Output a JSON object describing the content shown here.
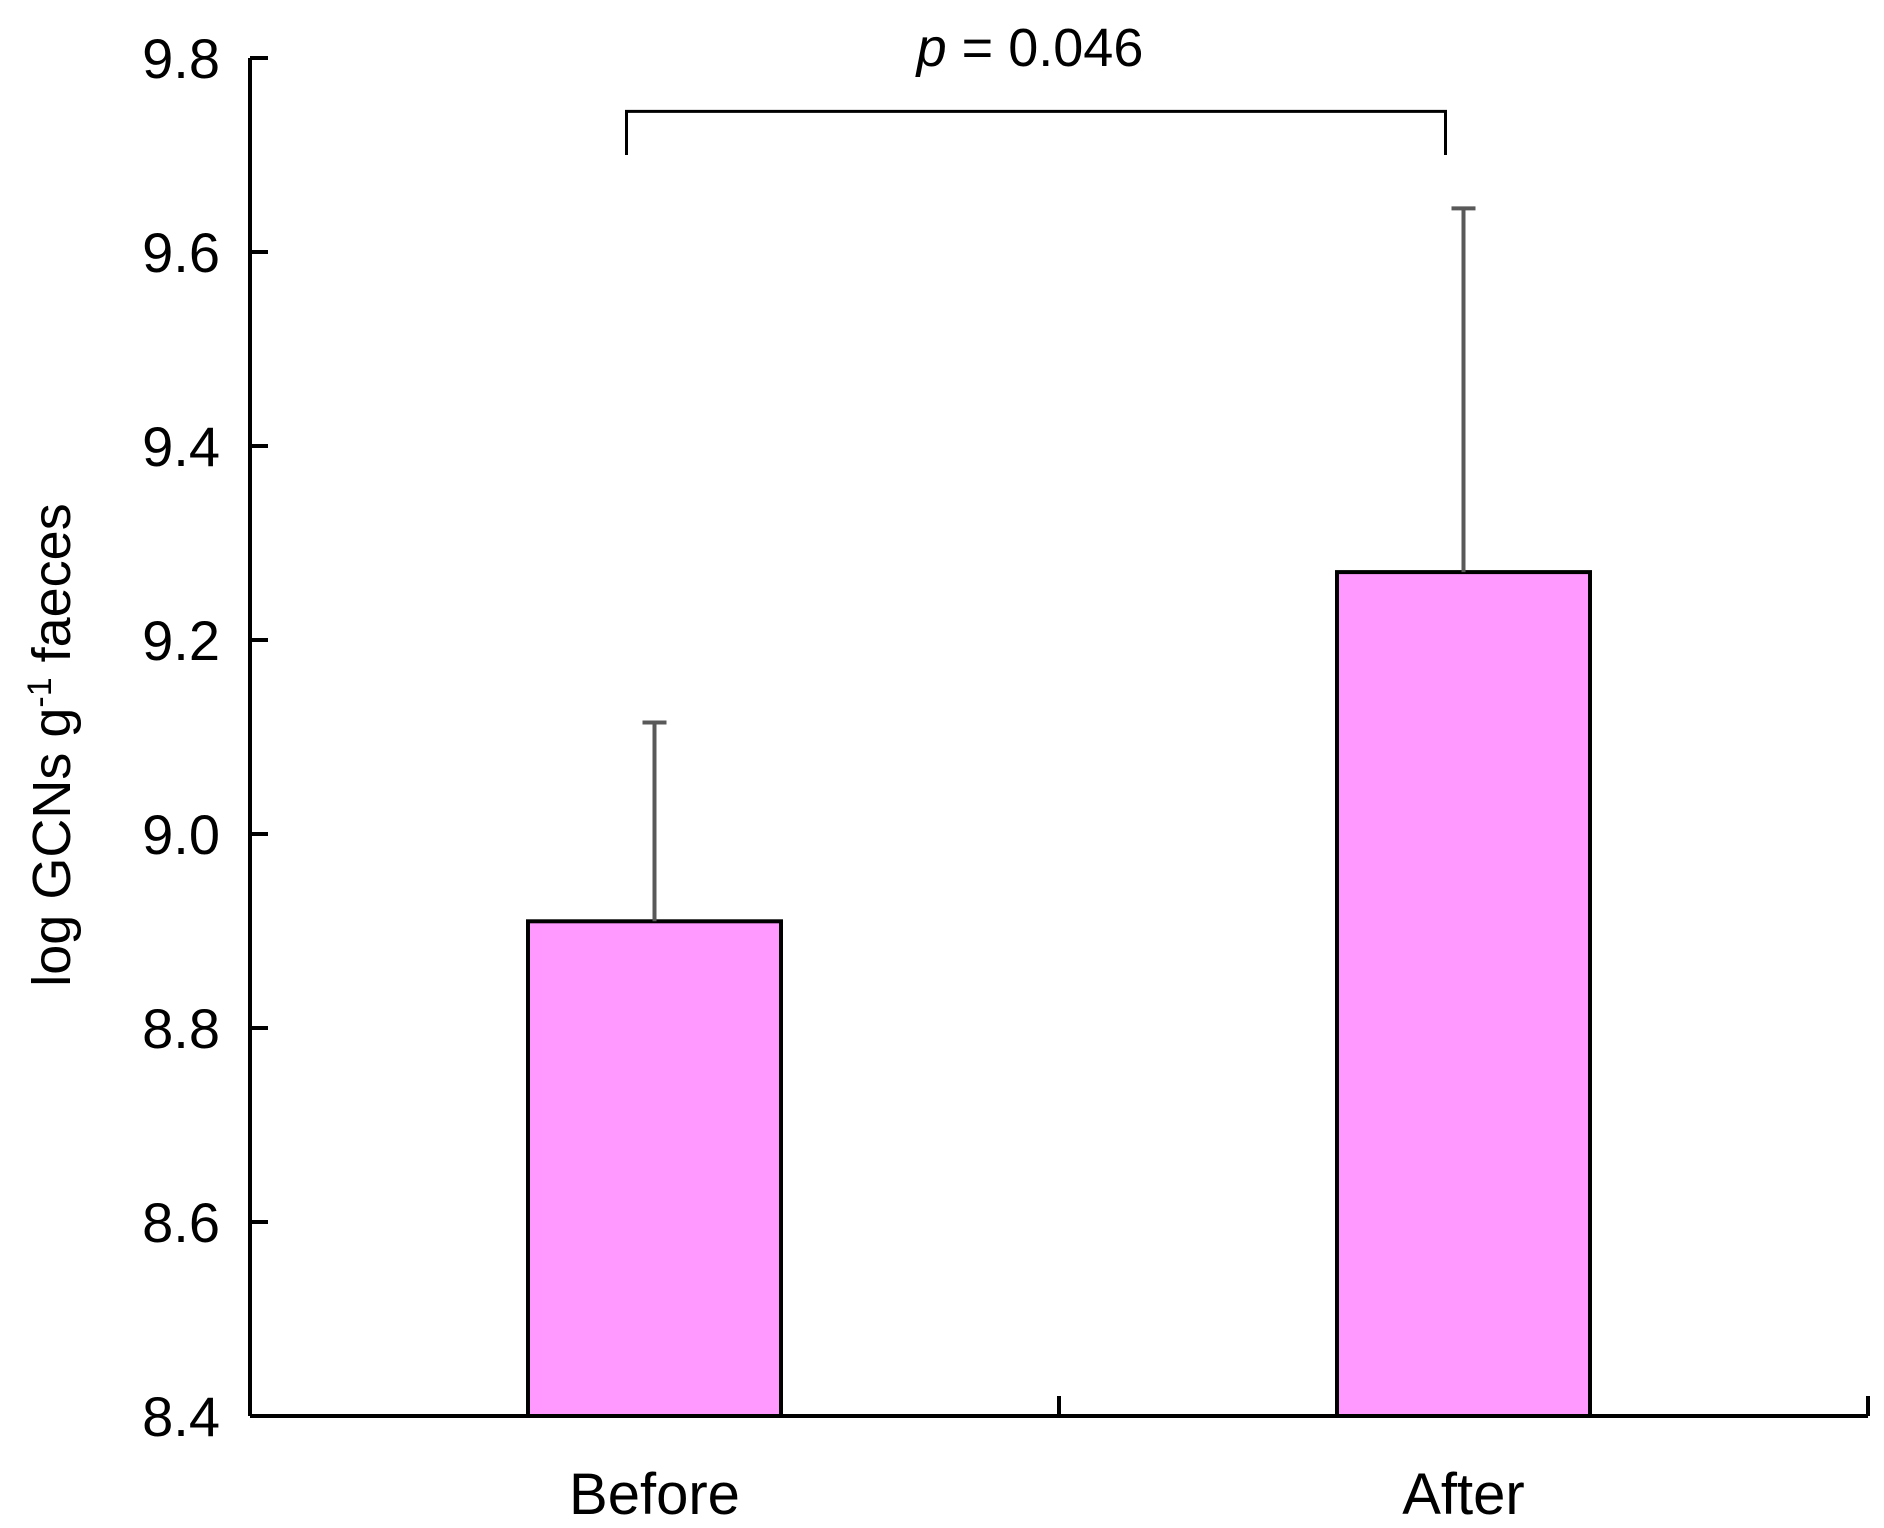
{
  "chart_data": {
    "type": "bar",
    "title": "",
    "xlabel": "",
    "ylabel": {
      "prefix": "log GCNs g",
      "superscript": "-1",
      "suffix": " faeces"
    },
    "categories": [
      "Before",
      "After"
    ],
    "values": [
      8.91,
      9.27
    ],
    "error_upper": [
      9.115,
      9.645
    ],
    "ylim": [
      8.4,
      9.8
    ],
    "yticks": [
      8.4,
      8.6,
      8.8,
      9.0,
      9.2,
      9.4,
      9.6,
      9.8
    ],
    "ytick_labels": [
      "8.4",
      "8.6",
      "8.8",
      "9.0",
      "9.2",
      "9.4",
      "9.6",
      "9.8"
    ],
    "bracket_level": 9.745,
    "bracket_bottom": 9.7,
    "annotation": {
      "p_symbol": "p",
      "equals": " = ",
      "value": "0.046"
    },
    "bar_color": "#ff99ff",
    "edge_color": "#000000",
    "error_color": "#595959",
    "grid": false,
    "legend": "none"
  }
}
